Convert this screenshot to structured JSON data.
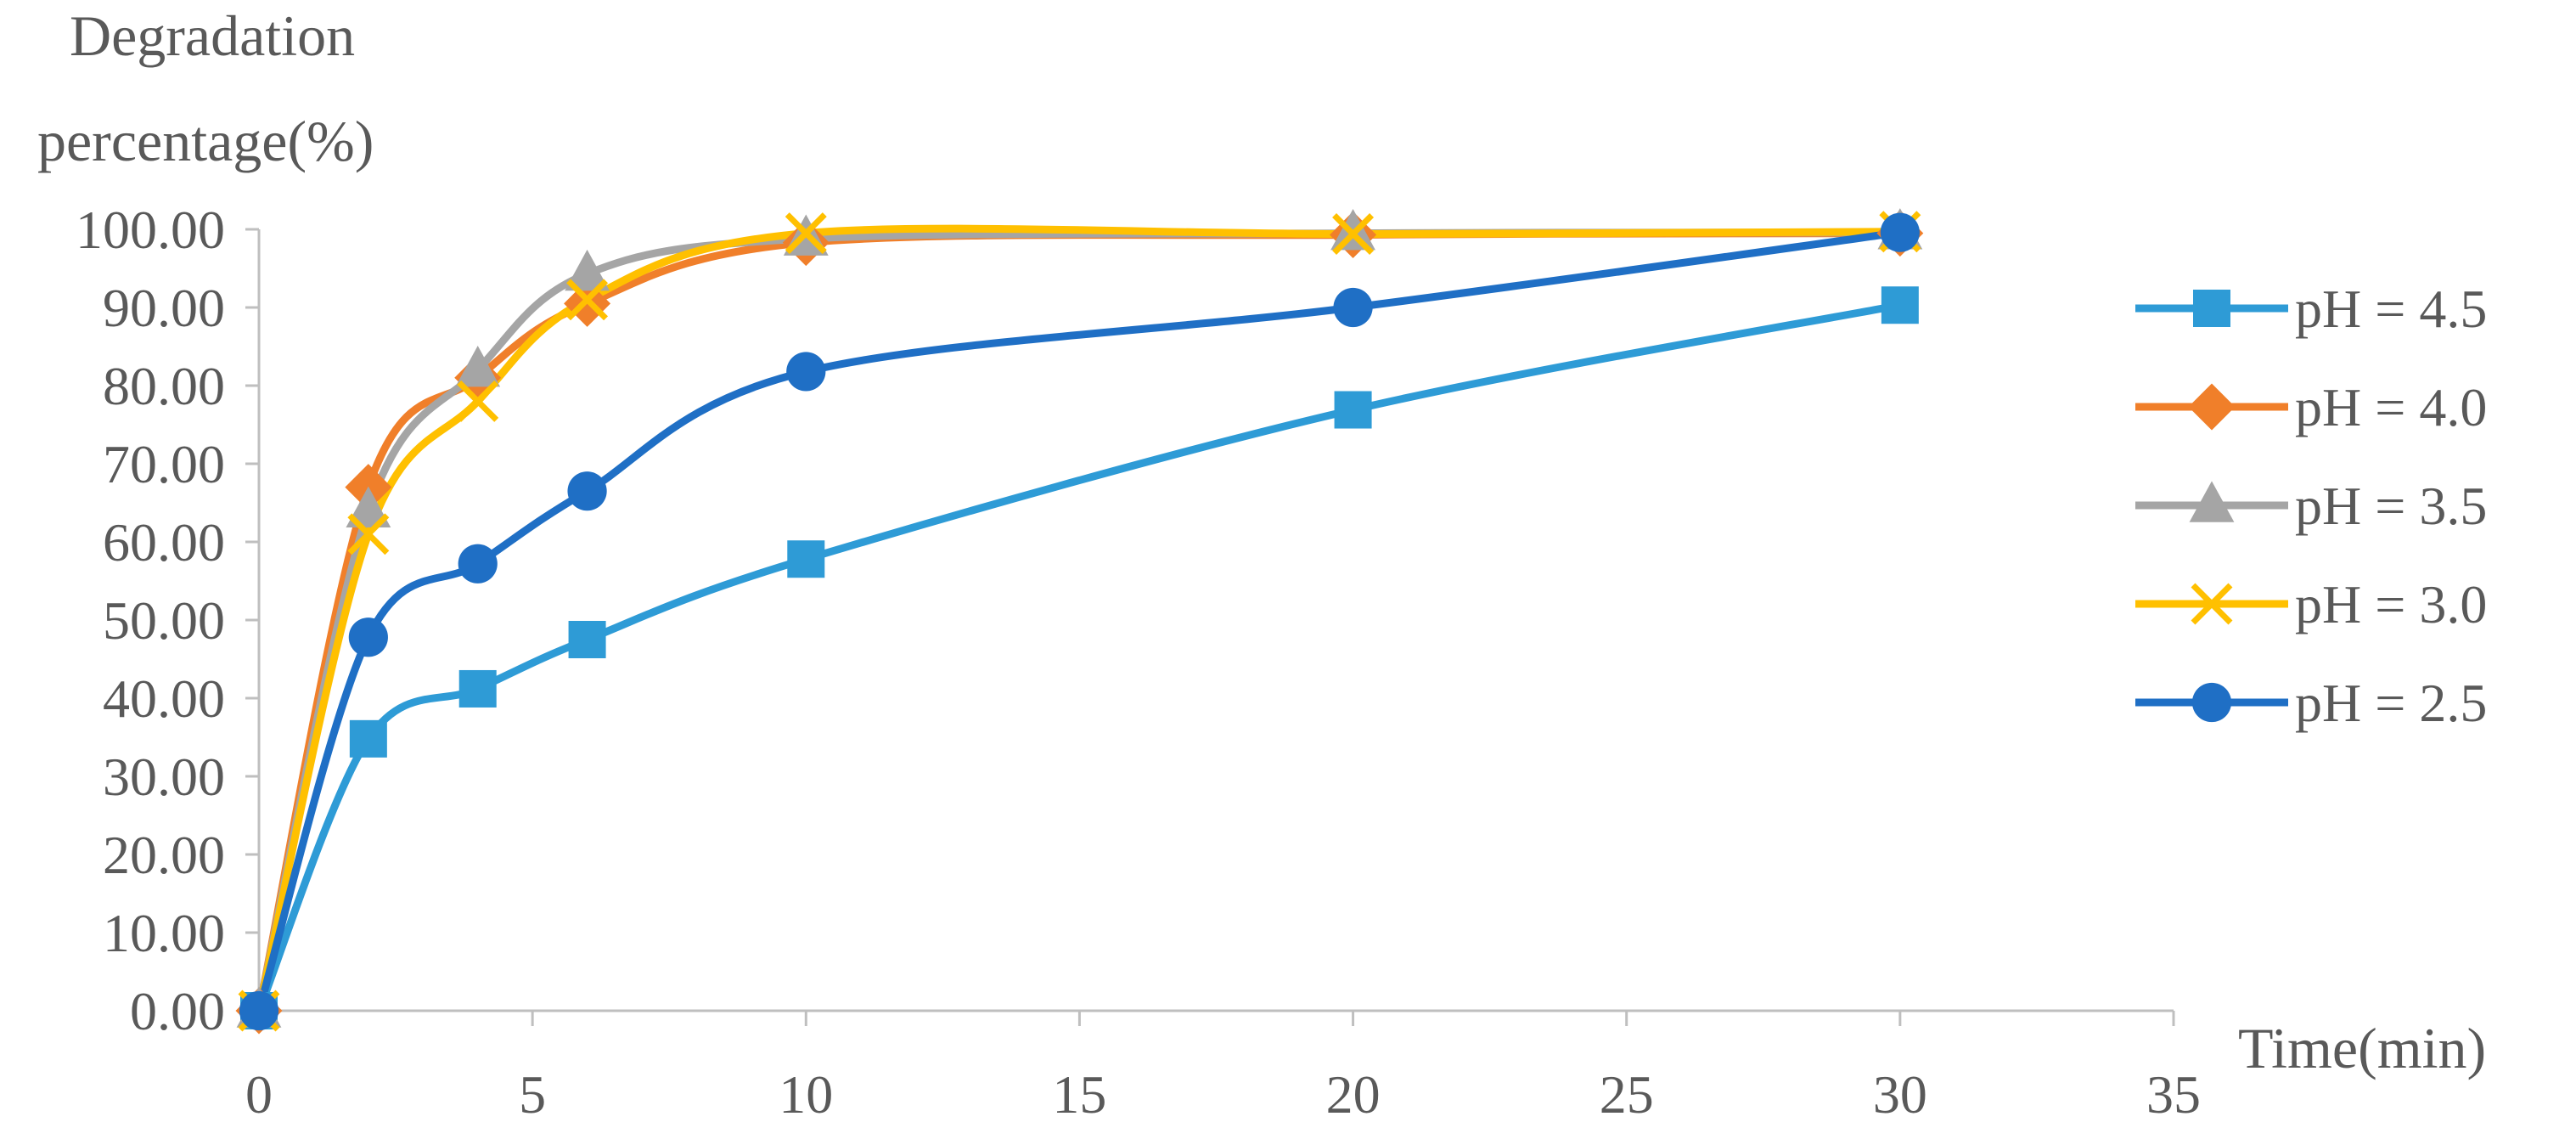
{
  "chart_data": {
    "type": "line",
    "ylabel_lines": [
      "Degradation",
      "percentage(%)"
    ],
    "xlabel": "Time(min)",
    "x": [
      0,
      2,
      4,
      6,
      10,
      20,
      30
    ],
    "xlim": [
      0,
      35
    ],
    "ylim": [
      0,
      100
    ],
    "x_ticks": [
      "0",
      "5",
      "10",
      "15",
      "20",
      "25",
      "30",
      "35"
    ],
    "x_tick_values": [
      0,
      5,
      10,
      15,
      20,
      25,
      30,
      35
    ],
    "y_ticks": [
      "0.00",
      "10.00",
      "20.00",
      "30.00",
      "40.00",
      "50.00",
      "60.00",
      "70.00",
      "80.00",
      "90.00",
      "100.00"
    ],
    "y_tick_values": [
      0,
      10,
      20,
      30,
      40,
      50,
      60,
      70,
      80,
      90,
      100
    ],
    "grid": false,
    "smooth": true,
    "legend_position": "right",
    "series": [
      {
        "name": "pH = 4.5",
        "color": "#2E9BD6",
        "marker": "square",
        "values": [
          0,
          34.8,
          41.2,
          47.5,
          57.8,
          76.9,
          90.3
        ]
      },
      {
        "name": "pH = 4.0",
        "color": "#F07F2A",
        "marker": "diamond",
        "values": [
          0,
          67.0,
          81.0,
          90.5,
          98.3,
          99.3,
          99.5
        ]
      },
      {
        "name": "pH = 3.5",
        "color": "#A5A5A5",
        "marker": "triangle",
        "values": [
          0,
          64.0,
          82.0,
          94.3,
          98.8,
          99.5,
          99.6
        ]
      },
      {
        "name": "pH = 3.0",
        "color": "#FFC000",
        "marker": "x",
        "values": [
          0,
          61.0,
          78.0,
          91.0,
          99.5,
          99.4,
          99.7
        ]
      },
      {
        "name": "pH = 2.5",
        "color": "#1F6FC5",
        "marker": "circle",
        "values": [
          0,
          47.8,
          57.2,
          66.5,
          81.8,
          90.0,
          99.6
        ]
      }
    ]
  }
}
